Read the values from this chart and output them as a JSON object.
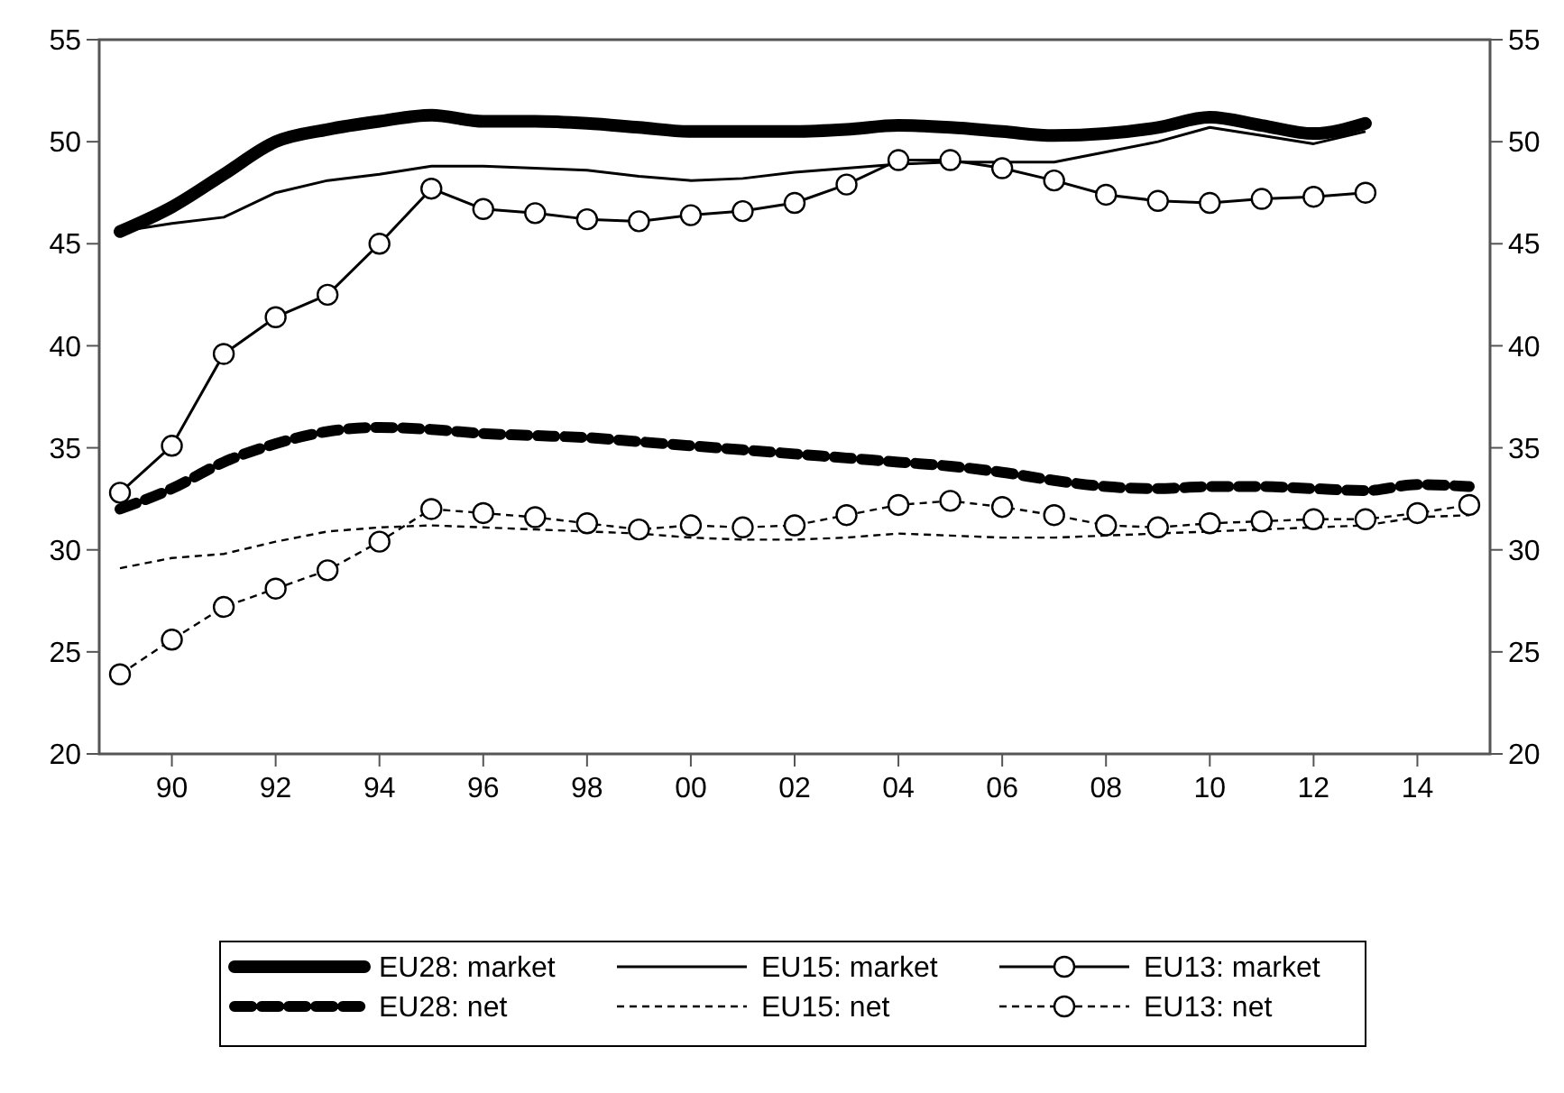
{
  "chart_data": {
    "type": "line",
    "x": [
      1989,
      1990,
      1991,
      1992,
      1993,
      1994,
      1995,
      1996,
      1997,
      1998,
      1999,
      2000,
      2001,
      2002,
      2003,
      2004,
      2005,
      2006,
      2007,
      2008,
      2009,
      2010,
      2011,
      2012,
      2013,
      2014,
      2015
    ],
    "xlim": [
      1988.6,
      2015.4
    ],
    "xticks": [
      {
        "value": 1990,
        "label": "90"
      },
      {
        "value": 1992,
        "label": "92"
      },
      {
        "value": 1994,
        "label": "94"
      },
      {
        "value": 1996,
        "label": "96"
      },
      {
        "value": 1998,
        "label": "98"
      },
      {
        "value": 2000,
        "label": "00"
      },
      {
        "value": 2002,
        "label": "02"
      },
      {
        "value": 2004,
        "label": "04"
      },
      {
        "value": 2006,
        "label": "06"
      },
      {
        "value": 2008,
        "label": "08"
      },
      {
        "value": 2010,
        "label": "10"
      },
      {
        "value": 2012,
        "label": "12"
      },
      {
        "value": 2014,
        "label": "14"
      }
    ],
    "ylim": [
      20,
      55
    ],
    "yticks": [
      20,
      25,
      30,
      35,
      40,
      45,
      50,
      55
    ],
    "y2lim": [
      20,
      55
    ],
    "y2ticks": [
      20,
      25,
      30,
      35,
      40,
      45,
      50,
      55
    ],
    "grid": false,
    "legend": "bottom",
    "series": [
      {
        "name": "EU28: market",
        "color": "#000000",
        "line_style": "solid",
        "marker": "none",
        "values": [
          45.6,
          46.8,
          48.4,
          50.0,
          50.6,
          51.0,
          51.3,
          51.0,
          51.0,
          50.9,
          50.7,
          50.5,
          50.5,
          50.5,
          50.6,
          50.8,
          50.7,
          50.5,
          50.3,
          50.4,
          50.7,
          51.2,
          50.8,
          50.4,
          50.9,
          null,
          null
        ]
      },
      {
        "name": "EU15: market",
        "color": "#000000",
        "line_style": "solid",
        "marker": "none",
        "values": [
          45.6,
          46.0,
          46.3,
          47.5,
          48.1,
          48.4,
          48.8,
          48.8,
          48.7,
          48.6,
          48.3,
          48.1,
          48.2,
          48.5,
          48.7,
          48.9,
          49.0,
          49.0,
          49.0,
          49.5,
          50.0,
          50.7,
          50.3,
          49.9,
          50.5,
          null,
          null
        ]
      },
      {
        "name": "EU13: market",
        "color": "#000000",
        "line_style": "solid",
        "marker": "circle",
        "values": [
          32.8,
          35.1,
          39.6,
          41.4,
          42.5,
          45.0,
          47.7,
          46.7,
          46.5,
          46.2,
          46.1,
          46.4,
          46.6,
          47.0,
          47.9,
          49.1,
          49.1,
          48.7,
          48.1,
          47.4,
          47.1,
          47.0,
          47.2,
          47.3,
          47.5,
          null,
          null
        ]
      },
      {
        "name": "EU28: net",
        "color": "#000000",
        "line_style": "dashed",
        "marker": "none",
        "values": [
          32.0,
          33.0,
          34.3,
          35.2,
          35.8,
          36.0,
          35.9,
          35.7,
          35.6,
          35.5,
          35.3,
          35.1,
          34.9,
          34.7,
          34.5,
          34.3,
          34.1,
          33.8,
          33.4,
          33.1,
          33.0,
          33.1,
          33.1,
          33.0,
          32.9,
          33.2,
          33.1
        ]
      },
      {
        "name": "EU15: net",
        "color": "#000000",
        "line_style": "dashed",
        "marker": "none",
        "values": [
          29.1,
          29.6,
          29.8,
          30.4,
          30.9,
          31.1,
          31.2,
          31.1,
          31.0,
          30.9,
          30.8,
          30.6,
          30.5,
          30.5,
          30.6,
          30.8,
          30.7,
          30.6,
          30.6,
          30.7,
          30.8,
          30.9,
          31.0,
          31.1,
          31.2,
          31.6,
          31.7
        ]
      },
      {
        "name": "EU13: net",
        "color": "#000000",
        "line_style": "dashed",
        "marker": "circle",
        "values": [
          23.9,
          25.6,
          27.2,
          28.1,
          29.0,
          30.4,
          32.0,
          31.8,
          31.6,
          31.3,
          31.0,
          31.2,
          31.1,
          31.2,
          31.7,
          32.2,
          32.4,
          32.1,
          31.7,
          31.2,
          31.1,
          31.3,
          31.4,
          31.5,
          31.5,
          31.8,
          32.2
        ]
      }
    ]
  }
}
